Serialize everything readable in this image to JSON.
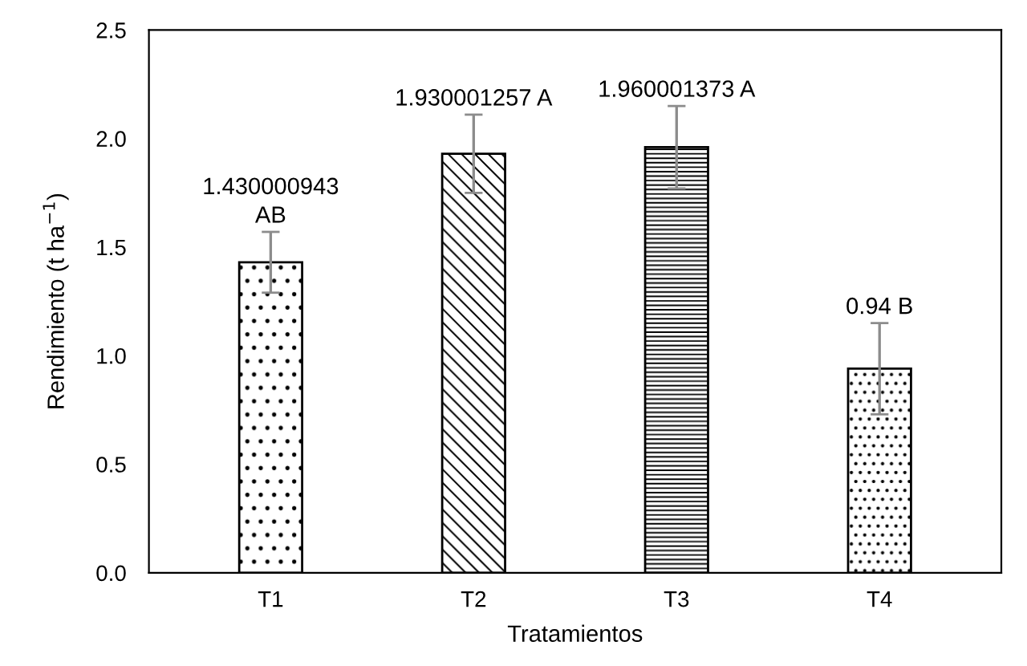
{
  "chart_data": {
    "type": "bar",
    "xlabel": "Tratamientos",
    "ylabel": "Rendimiento (t ha$^{−1}$)",
    "categories": [
      "T1",
      "T2",
      "T3",
      "T4"
    ],
    "values": [
      1.430000943,
      1.930001257,
      1.960001373,
      0.94
    ],
    "errors": [
      0.14,
      0.18,
      0.19,
      0.21
    ],
    "value_labels": [
      "1.430000943\nAB",
      "1.930001257 A",
      "1.960001373 A",
      "0.94 B"
    ],
    "color": "#000000",
    "ylim": [
      0,
      2.5
    ],
    "yticks": [
      {
        "value": 0,
        "label": "0.0"
      },
      {
        "value": 0.5,
        "label": "0.5"
      },
      {
        "value": 1,
        "label": "1.0"
      },
      {
        "value": 1.5,
        "label": "1.5"
      },
      {
        "value": 2,
        "label": "2.0"
      },
      {
        "value": 2.5,
        "label": "2.5"
      }
    ],
    "grid": false,
    "legend": false
  }
}
